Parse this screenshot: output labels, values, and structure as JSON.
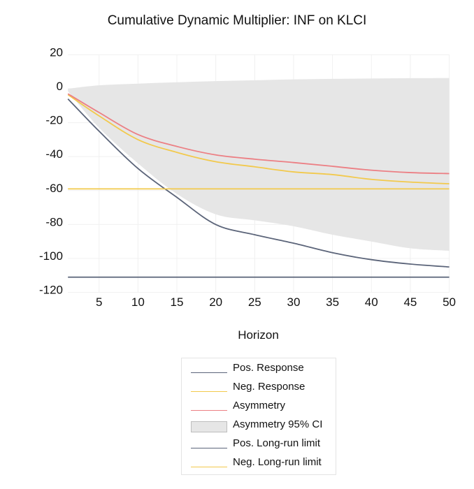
{
  "chart_data": {
    "type": "line",
    "title": "Cumulative Dynamic Multiplier: INF on KLCI",
    "xlabel": "Horizon",
    "ylabel": "",
    "xlim": [
      1,
      50
    ],
    "ylim": [
      -120,
      20
    ],
    "x_ticks": [
      "5",
      "10",
      "15",
      "20",
      "25",
      "30",
      "35",
      "40",
      "45",
      "50"
    ],
    "y_ticks": [
      "20",
      "0",
      "-20",
      "-40",
      "-60",
      "-80",
      "-100",
      "-120"
    ],
    "grid": true,
    "legend_position": "bottom",
    "x": [
      1,
      5,
      10,
      15,
      20,
      25,
      30,
      35,
      40,
      45,
      50
    ],
    "series": [
      {
        "name": "Pos. Response",
        "color": "#5b6479",
        "kind": "line",
        "values": [
          -6,
          -25,
          -47,
          -64,
          -80,
          -86,
          -91,
          -96.6,
          -100.7,
          -103.3,
          -105
        ]
      },
      {
        "name": "Neg. Response",
        "color": "#f2c94c",
        "kind": "line",
        "values": [
          -3.5,
          -16,
          -30,
          -37.5,
          -43,
          -46,
          -49,
          -50.6,
          -53.4,
          -55,
          -56
        ]
      },
      {
        "name": "Asymmetry",
        "color": "#ec7f84",
        "kind": "line",
        "values": [
          -3,
          -14,
          -27,
          -34,
          -39,
          -41.5,
          -43.5,
          -45.7,
          -48,
          -49.4,
          -50
        ]
      },
      {
        "name": "Asymmetry 95% CI",
        "color": "#e6e6e6",
        "kind": "band",
        "upper": [
          0,
          2,
          3,
          3.8,
          4.5,
          5,
          5.5,
          5.8,
          6,
          6.2,
          6.3
        ],
        "lower": [
          -1.5,
          -23,
          -44,
          -62,
          -74,
          -77.5,
          -81,
          -86,
          -90,
          -94,
          -95.5
        ]
      },
      {
        "name": "Pos. Long-run limit",
        "color": "#5b6479",
        "kind": "hline",
        "value": -111
      },
      {
        "name": "Neg. Long-run limit",
        "color": "#f2c94c",
        "kind": "hline",
        "value": -59
      }
    ]
  }
}
